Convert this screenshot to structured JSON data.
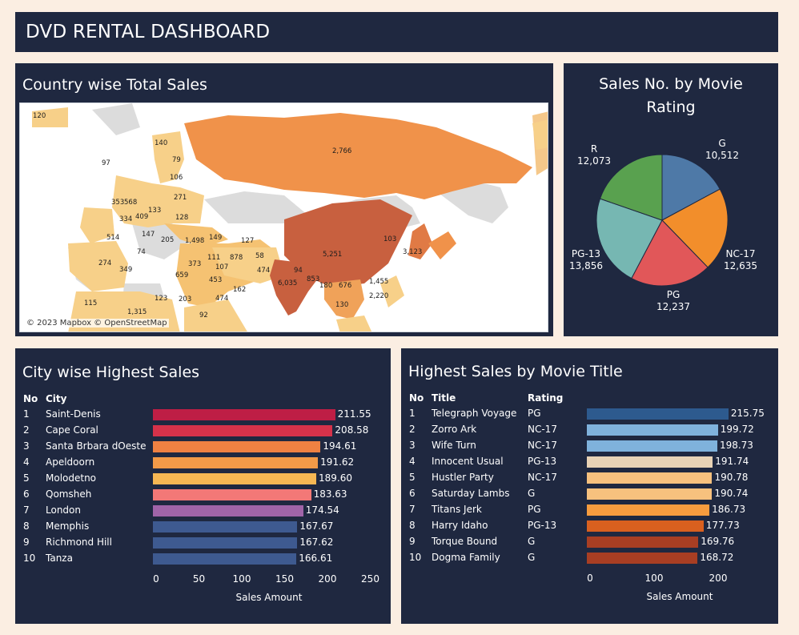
{
  "dashboard": {
    "title": "DVD RENTAL DASHBOARD"
  },
  "map_panel": {
    "title": "Country wise Total Sales",
    "attribution": "© 2023 Mapbox © OpenStreetMap",
    "labels": [
      "120",
      "140",
      "79",
      "97",
      "106",
      "271",
      "353",
      "568",
      "334",
      "409",
      "133",
      "128",
      "514",
      "147",
      "205",
      "1,498",
      "149",
      "127",
      "2,766",
      "103",
      "3,123",
      "274",
      "74",
      "349",
      "373",
      "111",
      "878",
      "58",
      "107",
      "659",
      "453",
      "474",
      "5,251",
      "94",
      "853",
      "1,455",
      "6,035",
      "180",
      "676",
      "2,220",
      "115",
      "123",
      "203",
      "474",
      "162",
      "92",
      "130",
      "1,315"
    ]
  },
  "pie_panel": {
    "title_line1": "Sales No. by Movie",
    "title_line2": "Rating"
  },
  "city_panel": {
    "title": "City wise Highest Sales",
    "col_no": "No",
    "col_city": "City",
    "axis_title": "Sales Amount",
    "ticks": [
      "0",
      "50",
      "100",
      "150",
      "200",
      "250"
    ]
  },
  "movie_panel": {
    "title": "Highest Sales by Movie Title",
    "col_no": "No",
    "col_title": "Title",
    "col_rating": "Rating",
    "axis_title": "Sales Amount",
    "ticks": [
      "0",
      "100",
      "200"
    ]
  },
  "chart_data": [
    {
      "type": "pie",
      "title": "Sales No. by Movie Rating",
      "slices": [
        {
          "label": "G",
          "value": 10512,
          "display": "10,512",
          "color": "#4e79a7"
        },
        {
          "label": "NC-17",
          "value": 12635,
          "display": "12,635",
          "color": "#f28e2b"
        },
        {
          "label": "PG",
          "value": 12237,
          "display": "12,237",
          "color": "#e15759"
        },
        {
          "label": "PG-13",
          "value": 13856,
          "display": "13,856",
          "color": "#76b7b2"
        },
        {
          "label": "R",
          "value": 12073,
          "display": "12,073",
          "color": "#59a14f"
        }
      ]
    },
    {
      "type": "bar",
      "title": "City wise Highest Sales",
      "xlabel": "Sales Amount",
      "xlim": [
        0,
        250
      ],
      "rows": [
        {
          "no": "1",
          "city": "Saint-Denis",
          "value": 211.55,
          "display": "211.55",
          "color": "#be1e45"
        },
        {
          "no": "2",
          "city": "Cape Coral",
          "value": 208.58,
          "display": "208.58",
          "color": "#d6324a"
        },
        {
          "no": "3",
          "city": "Santa Brbara dOeste",
          "value": 194.61,
          "display": "194.61",
          "color": "#ef8142"
        },
        {
          "no": "4",
          "city": "Apeldoorn",
          "value": 191.62,
          "display": "191.62",
          "color": "#f29a48"
        },
        {
          "no": "5",
          "city": "Molodetno",
          "value": 189.6,
          "display": "189.60",
          "color": "#f6b753"
        },
        {
          "no": "6",
          "city": "Qomsheh",
          "value": 183.63,
          "display": "183.63",
          "color": "#f37877"
        },
        {
          "no": "7",
          "city": "London",
          "value": 174.54,
          "display": "174.54",
          "color": "#a064a8"
        },
        {
          "no": "8",
          "city": "Memphis",
          "value": 167.67,
          "display": "167.67",
          "color": "#3e5a90"
        },
        {
          "no": "9",
          "city": "Richmond Hill",
          "value": 167.62,
          "display": "167.62",
          "color": "#3e5a90"
        },
        {
          "no": "10",
          "city": "Tanza",
          "value": 166.61,
          "display": "166.61",
          "color": "#3e5a90"
        }
      ]
    },
    {
      "type": "bar",
      "title": "Highest Sales by Movie Title",
      "xlabel": "Sales Amount",
      "xlim": [
        0,
        210
      ],
      "rows": [
        {
          "no": "1",
          "title": "Telegraph Voyage",
          "rating": "PG",
          "value": 215.75,
          "display": "215.75",
          "color": "#2d5a8e"
        },
        {
          "no": "2",
          "title": "Zorro Ark",
          "rating": "NC-17",
          "value": 199.72,
          "display": "199.72",
          "color": "#7fb2dc"
        },
        {
          "no": "3",
          "title": "Wife Turn",
          "rating": "NC-17",
          "value": 198.73,
          "display": "198.73",
          "color": "#7fb2dc"
        },
        {
          "no": "4",
          "title": "Innocent Usual",
          "rating": "PG-13",
          "value": 191.74,
          "display": "191.74",
          "color": "#e8d2b5"
        },
        {
          "no": "5",
          "title": "Hustler Party",
          "rating": "NC-17",
          "value": 190.78,
          "display": "190.78",
          "color": "#f7c17e"
        },
        {
          "no": "6",
          "title": "Saturday Lambs",
          "rating": "G",
          "value": 190.74,
          "display": "190.74",
          "color": "#f7c17e"
        },
        {
          "no": "7",
          "title": "Titans Jerk",
          "rating": "PG",
          "value": 186.73,
          "display": "186.73",
          "color": "#f79c3e"
        },
        {
          "no": "8",
          "title": "Harry Idaho",
          "rating": "PG-13",
          "value": 177.73,
          "display": "177.73",
          "color": "#d9601f"
        },
        {
          "no": "9",
          "title": "Torque Bound",
          "rating": "G",
          "value": 169.76,
          "display": "169.76",
          "color": "#a83e23"
        },
        {
          "no": "10",
          "title": "Dogma Family",
          "rating": "G",
          "value": 168.72,
          "display": "168.72",
          "color": "#a83e23"
        }
      ]
    }
  ]
}
